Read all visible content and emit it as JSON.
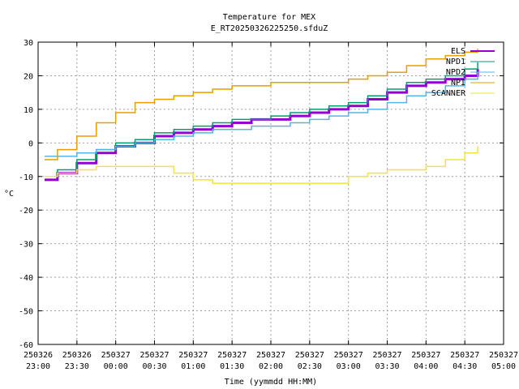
{
  "chart_data": {
    "type": "line",
    "title": "Temperature for MEX",
    "subtitle": "E_RT20250326225250.sfduZ",
    "xlabel": "Time (yymmdd HH:MM)",
    "ylabel": "°C",
    "ylim": [
      -60,
      30
    ],
    "yticks": [
      30,
      20,
      10,
      0,
      -10,
      -20,
      -30,
      -40,
      -50,
      -60
    ],
    "xlim": [
      "2025-03-26 23:00",
      "2025-03-27 05:00"
    ],
    "xticks": [
      {
        "top": "250326",
        "bottom": "23:00"
      },
      {
        "top": "250326",
        "bottom": "23:30"
      },
      {
        "top": "250327",
        "bottom": "00:00"
      },
      {
        "top": "250327",
        "bottom": "00:30"
      },
      {
        "top": "250327",
        "bottom": "01:00"
      },
      {
        "top": "250327",
        "bottom": "01:30"
      },
      {
        "top": "250327",
        "bottom": "02:00"
      },
      {
        "top": "250327",
        "bottom": "02:30"
      },
      {
        "top": "250327",
        "bottom": "03:00"
      },
      {
        "top": "250327",
        "bottom": "03:30"
      },
      {
        "top": "250327",
        "bottom": "04:00"
      },
      {
        "top": "250327",
        "bottom": "04:30"
      },
      {
        "top": "250327",
        "bottom": "05:00"
      }
    ],
    "grid": true,
    "legend_position": "top-right",
    "series": [
      {
        "name": "ELS",
        "color": "#9400d3",
        "x": [
          "23:05",
          "23:15",
          "23:30",
          "23:45",
          "00:00",
          "00:15",
          "00:30",
          "00:45",
          "01:00",
          "01:15",
          "01:30",
          "01:45",
          "02:00",
          "02:15",
          "02:30",
          "02:45",
          "03:00",
          "03:15",
          "03:30",
          "03:45",
          "04:00",
          "04:15",
          "04:30",
          "04:40"
        ],
        "y": [
          -11,
          -9,
          -6,
          -3,
          -1,
          0,
          2,
          3,
          4,
          5,
          6,
          7,
          7,
          8,
          9,
          10,
          11,
          13,
          15,
          17,
          18,
          19,
          20,
          22
        ]
      },
      {
        "name": "NPD1",
        "color": "#009e73",
        "x": [
          "23:05",
          "23:15",
          "23:30",
          "23:45",
          "00:00",
          "00:15",
          "00:30",
          "00:45",
          "01:00",
          "01:15",
          "01:30",
          "01:45",
          "02:00",
          "02:15",
          "02:30",
          "02:45",
          "03:00",
          "03:15",
          "03:30",
          "03:45",
          "04:00",
          "04:15",
          "04:30",
          "04:40"
        ],
        "y": [
          -10,
          -8,
          -5,
          -2,
          0,
          1,
          3,
          4,
          5,
          6,
          7,
          7,
          8,
          9,
          10,
          11,
          12,
          14,
          16,
          18,
          19,
          20,
          22,
          24
        ]
      },
      {
        "name": "NPD2",
        "color": "#56b4e9",
        "x": [
          "23:05",
          "23:15",
          "23:30",
          "23:45",
          "00:00",
          "00:15",
          "00:30",
          "00:45",
          "01:00",
          "01:15",
          "01:30",
          "01:45",
          "02:00",
          "02:15",
          "02:30",
          "02:45",
          "03:00",
          "03:15",
          "03:30",
          "03:45",
          "04:00",
          "04:15",
          "04:30",
          "04:40"
        ],
        "y": [
          -4,
          -4,
          -3,
          -2,
          -1,
          0,
          1,
          2,
          3,
          4,
          4,
          5,
          5,
          6,
          7,
          8,
          9,
          10,
          12,
          14,
          15,
          17,
          19,
          21
        ]
      },
      {
        "name": "NPI",
        "color": "#e69f00",
        "x": [
          "23:05",
          "23:15",
          "23:30",
          "23:45",
          "00:00",
          "00:15",
          "00:30",
          "00:45",
          "01:00",
          "01:15",
          "01:30",
          "01:45",
          "02:00",
          "02:15",
          "02:30",
          "02:45",
          "03:00",
          "03:15",
          "03:30",
          "03:45",
          "04:00",
          "04:15",
          "04:30",
          "04:40"
        ],
        "y": [
          -5,
          -2,
          2,
          6,
          9,
          12,
          13,
          14,
          15,
          16,
          17,
          17,
          18,
          18,
          18,
          18,
          19,
          20,
          21,
          23,
          25,
          26,
          27,
          28
        ]
      },
      {
        "name": "SCANNER",
        "color": "#f0e442",
        "x": [
          "23:05",
          "23:15",
          "23:30",
          "23:45",
          "00:00",
          "00:15",
          "00:30",
          "00:45",
          "01:00",
          "01:15",
          "01:30",
          "01:45",
          "02:00",
          "02:15",
          "02:30",
          "02:45",
          "03:00",
          "03:15",
          "03:30",
          "03:45",
          "04:00",
          "04:15",
          "04:30",
          "04:40"
        ],
        "y": [
          -10,
          -9,
          -8,
          -7,
          -7,
          -7,
          -7,
          -9,
          -11,
          -12,
          -12,
          -12,
          -12,
          -12,
          -12,
          -12,
          -10,
          -9,
          -8,
          -8,
          -7,
          -5,
          -3,
          -1
        ]
      }
    ]
  }
}
